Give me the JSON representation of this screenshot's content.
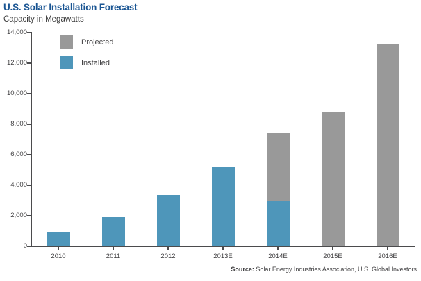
{
  "header": {
    "title": "U.S. Solar Installation Forecast",
    "subtitle": "Capacity in Megawatts"
  },
  "legend": [
    {
      "label": "Projected",
      "color": "#999999"
    },
    {
      "label": "Installed",
      "color": "#4E96BA"
    }
  ],
  "source": {
    "prefix": "Source:",
    "text": " Solar Energy Industries Association, U.S. Global Investors"
  },
  "chart_data": {
    "type": "bar",
    "stacked": true,
    "title": "U.S. Solar Installation Forecast",
    "subtitle": "Capacity in Megawatts",
    "xlabel": "",
    "ylabel": "Capacity in Megawatts",
    "categories": [
      "2010",
      "2011",
      "2012",
      "2013E",
      "2014E",
      "2015E",
      "2016E"
    ],
    "series": [
      {
        "name": "Installed",
        "color": "#4E96BA",
        "values": [
          880,
          1850,
          3310,
          5150,
          2900,
          0,
          0
        ]
      },
      {
        "name": "Projected",
        "color": "#999999",
        "values": [
          0,
          0,
          0,
          0,
          4500,
          8700,
          13150
        ]
      }
    ],
    "totals": [
      880,
      1850,
      3310,
      5150,
      7400,
      8700,
      13150
    ],
    "ylim": [
      0,
      14000
    ],
    "ytick_interval": 2000,
    "ytick_labels": [
      "0",
      "2,000",
      "4,000",
      "6,000",
      "8,000",
      "10,000",
      "12,000",
      "14,000"
    ],
    "grid": false,
    "legend_position": "inside-top-left"
  }
}
